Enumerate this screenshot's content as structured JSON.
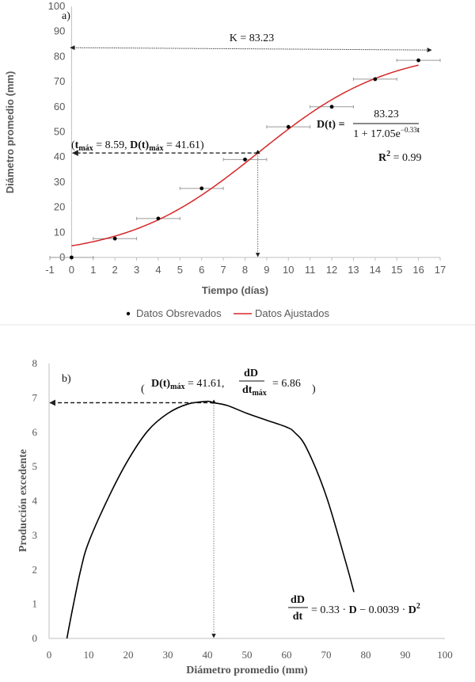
{
  "chart_data": [
    {
      "id": "a",
      "type": "scatter",
      "panel_label": "a)",
      "xlabel": "Tiempo (días)",
      "ylabel": "Diámetro promedio (mm)",
      "xlim": [
        -1,
        17
      ],
      "ylim": [
        0,
        100
      ],
      "xticks": [
        -1,
        0,
        1,
        2,
        3,
        4,
        5,
        6,
        7,
        8,
        9,
        10,
        11,
        12,
        13,
        14,
        15,
        16,
        17
      ],
      "yticks": [
        0,
        10,
        20,
        30,
        40,
        50,
        60,
        70,
        80,
        90,
        100
      ],
      "grid": false,
      "legend_position": "bottom",
      "legend": [
        "Datos Obsrevados",
        "Datos Ajustados"
      ],
      "series": [
        {
          "name": "Datos Obsrevados",
          "x": [
            0,
            2,
            4,
            6,
            8,
            10,
            12,
            14,
            16
          ],
          "y": [
            0,
            7.5,
            15.5,
            27.5,
            39,
            52,
            60,
            71,
            78.5
          ],
          "x_error": [
            1,
            1,
            1,
            1,
            1,
            1,
            1,
            1,
            1
          ],
          "color": "#000000"
        },
        {
          "name": "Datos Ajustados",
          "model": "logistic",
          "K": 83.23,
          "a": 17.05,
          "r": 0.33,
          "x_range": [
            0,
            16
          ],
          "color": "#d62728"
        }
      ],
      "annotations": {
        "K_label": "K = 83.23",
        "K_value": 83.23,
        "inflection_label": "(tmáx = 8.59, D(t)máx = 41.61)",
        "t_max": 8.59,
        "D_max": 41.61,
        "equation_lhs": "D(t) =",
        "equation_num": "83.23",
        "equation_den": "1 + 17.05e−0.33t",
        "r2_label": "R2 = 0.99"
      }
    },
    {
      "id": "b",
      "type": "line",
      "panel_label": "b)",
      "xlabel": "Diámetro promedio (mm)",
      "ylabel": "Producción excedente",
      "xlim": [
        0,
        100
      ],
      "ylim": [
        0,
        8
      ],
      "xticks": [
        0,
        10,
        20,
        30,
        40,
        50,
        60,
        70,
        80,
        90,
        100
      ],
      "yticks": [
        0,
        1,
        2,
        3,
        4,
        5,
        6,
        7,
        8
      ],
      "grid": false,
      "series": [
        {
          "name": "Producción excedente",
          "x": [
            4.5,
            6,
            8,
            10,
            15,
            20,
            25,
            30,
            35,
            40,
            41.6,
            45,
            50,
            55,
            60,
            62,
            65,
            70,
            75,
            77
          ],
          "y": [
            0,
            0.9,
            2.0,
            2.8,
            4.1,
            5.2,
            6.05,
            6.55,
            6.82,
            6.9,
            6.86,
            6.78,
            6.55,
            6.35,
            6.15,
            6.0,
            5.55,
            4.15,
            2.2,
            1.35
          ],
          "color": "#000000"
        }
      ],
      "annotations": {
        "peak_label": "D(t)máx = 41.61, dD/dtmáx = 6.86",
        "D_peak": 41.61,
        "dDdt_peak": 6.86,
        "equation": "dD/dt = 0.33 · D − 0.0039 · D2"
      }
    }
  ]
}
